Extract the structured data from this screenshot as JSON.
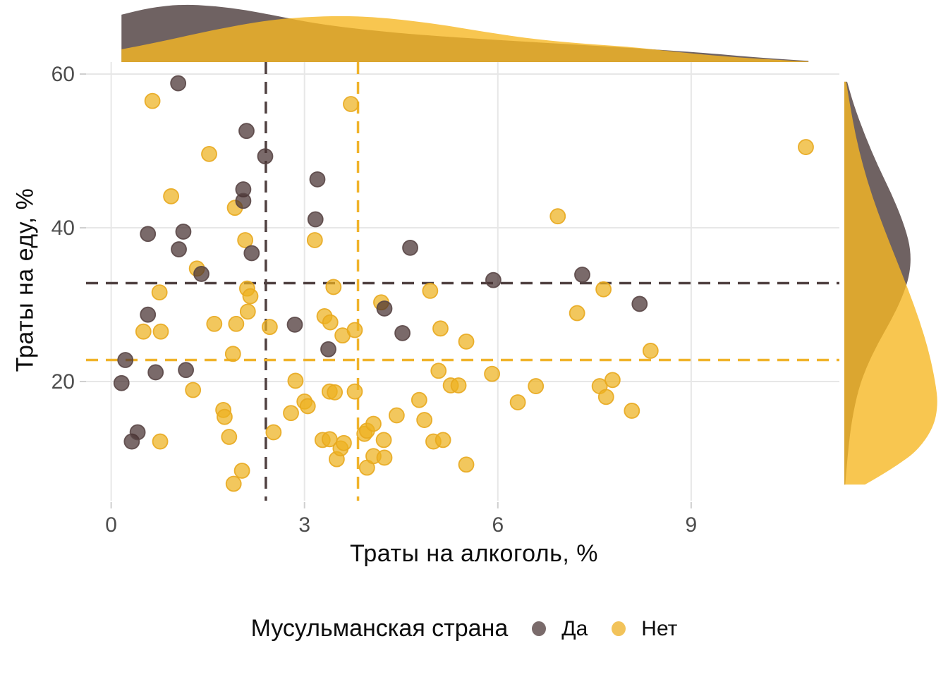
{
  "figure": {
    "x_axis": {
      "title": "Траты на алкоголь, %"
    },
    "y_axis": {
      "title": "Траты на еду, %"
    },
    "legend": {
      "title": "Мусульманская страна",
      "yes_label": "Да",
      "no_label": "Нет"
    }
  },
  "chart_data": {
    "type": "scatter",
    "title": "",
    "xlabel": "Траты на алкоголь, %",
    "ylabel": "Траты на еду, %",
    "xlim": [
      -0.39,
      11.3
    ],
    "ylim": [
      4.5,
      61.56
    ],
    "x_ticks": [
      0,
      3,
      6,
      9
    ],
    "y_ticks": [
      20,
      40,
      60
    ],
    "grid": true,
    "legend_position": "bottom",
    "legend_title": "Мусульманская страна",
    "series": [
      {
        "name": "Да",
        "points": [
          [
            0.16,
            19.8
          ],
          [
            0.22,
            22.8
          ],
          [
            0.32,
            12.2
          ],
          [
            0.41,
            13.4
          ],
          [
            0.57,
            39.2
          ],
          [
            0.57,
            28.7
          ],
          [
            0.69,
            21.2
          ],
          [
            1.04,
            58.8
          ],
          [
            1.05,
            37.2
          ],
          [
            1.12,
            39.5
          ],
          [
            1.16,
            21.5
          ],
          [
            1.4,
            34.0
          ],
          [
            2.05,
            45.0
          ],
          [
            2.05,
            43.5
          ],
          [
            2.1,
            52.6
          ],
          [
            2.18,
            36.7
          ],
          [
            2.39,
            49.3
          ],
          [
            2.85,
            27.4
          ],
          [
            3.17,
            41.1
          ],
          [
            3.2,
            46.3
          ],
          [
            3.37,
            24.2
          ],
          [
            4.24,
            29.5
          ],
          [
            4.52,
            26.3
          ],
          [
            4.64,
            37.4
          ],
          [
            5.93,
            33.2
          ],
          [
            7.31,
            33.9
          ],
          [
            8.2,
            30.1
          ]
        ]
      },
      {
        "name": "Нет",
        "points": [
          [
            0.5,
            26.5
          ],
          [
            0.64,
            56.5
          ],
          [
            0.75,
            31.6
          ],
          [
            0.76,
            12.2
          ],
          [
            0.77,
            26.5
          ],
          [
            0.93,
            44.1
          ],
          [
            1.27,
            18.9
          ],
          [
            1.33,
            34.7
          ],
          [
            1.52,
            49.6
          ],
          [
            1.6,
            27.5
          ],
          [
            1.74,
            16.3
          ],
          [
            1.76,
            15.4
          ],
          [
            1.83,
            12.8
          ],
          [
            1.9,
            6.7
          ],
          [
            1.92,
            42.6
          ],
          [
            1.89,
            23.6
          ],
          [
            1.94,
            27.5
          ],
          [
            2.03,
            8.4
          ],
          [
            2.08,
            38.4
          ],
          [
            2.11,
            32.1
          ],
          [
            2.16,
            31.1
          ],
          [
            2.12,
            29.1
          ],
          [
            2.46,
            27.1
          ],
          [
            2.52,
            13.4
          ],
          [
            2.79,
            15.9
          ],
          [
            2.86,
            20.1
          ],
          [
            3.0,
            17.4
          ],
          [
            3.05,
            16.8
          ],
          [
            3.16,
            38.4
          ],
          [
            3.28,
            12.4
          ],
          [
            3.31,
            28.5
          ],
          [
            3.39,
            18.7
          ],
          [
            3.39,
            12.5
          ],
          [
            3.4,
            27.7
          ],
          [
            3.45,
            32.3
          ],
          [
            3.47,
            18.6
          ],
          [
            3.5,
            9.9
          ],
          [
            3.56,
            11.3
          ],
          [
            3.59,
            26.0
          ],
          [
            3.61,
            12.0
          ],
          [
            3.72,
            56.1
          ],
          [
            3.78,
            26.7
          ],
          [
            3.78,
            18.7
          ],
          [
            3.93,
            13.2
          ],
          [
            3.97,
            13.6
          ],
          [
            3.97,
            8.8
          ],
          [
            4.07,
            14.5
          ],
          [
            4.07,
            10.3
          ],
          [
            4.19,
            30.3
          ],
          [
            4.23,
            12.4
          ],
          [
            4.24,
            10.1
          ],
          [
            4.43,
            15.6
          ],
          [
            4.78,
            17.6
          ],
          [
            4.86,
            15.0
          ],
          [
            4.95,
            31.8
          ],
          [
            5.0,
            12.2
          ],
          [
            5.08,
            21.4
          ],
          [
            5.11,
            26.9
          ],
          [
            5.15,
            12.4
          ],
          [
            5.27,
            19.5
          ],
          [
            5.39,
            19.5
          ],
          [
            5.51,
            25.2
          ],
          [
            5.51,
            9.2
          ],
          [
            5.91,
            21.0
          ],
          [
            6.31,
            17.3
          ],
          [
            6.59,
            19.4
          ],
          [
            6.93,
            41.5
          ],
          [
            7.23,
            28.9
          ],
          [
            7.58,
            19.4
          ],
          [
            7.64,
            32.0
          ],
          [
            7.68,
            18.0
          ],
          [
            7.78,
            20.2
          ],
          [
            8.08,
            16.2
          ],
          [
            8.37,
            24.0
          ],
          [
            10.78,
            50.5
          ]
        ]
      }
    ],
    "mean_lines": [
      {
        "group": "Да",
        "x": 2.4,
        "y": 32.8
      },
      {
        "group": "Нет",
        "x": 3.83,
        "y": 22.8
      }
    ],
    "marginal_density": {
      "top": {
        "clip_x": [
          0.16,
          10.82
        ],
        "yes": [
          [
            0.16,
            0.82
          ],
          [
            0.6,
            0.94
          ],
          [
            1.1,
            1.0
          ],
          [
            1.6,
            0.97
          ],
          [
            2.1,
            0.9
          ],
          [
            2.6,
            0.79
          ],
          [
            3.2,
            0.66
          ],
          [
            4.0,
            0.55
          ],
          [
            4.9,
            0.46
          ],
          [
            6.3,
            0.36
          ],
          [
            7.7,
            0.27
          ],
          [
            9.1,
            0.17
          ],
          [
            10.0,
            0.08
          ],
          [
            10.82,
            0.02
          ]
        ],
        "no": [
          [
            0.16,
            0.22
          ],
          [
            0.8,
            0.36
          ],
          [
            1.6,
            0.56
          ],
          [
            2.4,
            0.72
          ],
          [
            3.0,
            0.78
          ],
          [
            3.6,
            0.8
          ],
          [
            4.2,
            0.77
          ],
          [
            5.0,
            0.67
          ],
          [
            5.8,
            0.52
          ],
          [
            6.6,
            0.39
          ],
          [
            7.4,
            0.31
          ],
          [
            8.1,
            0.26
          ],
          [
            8.8,
            0.17
          ],
          [
            9.6,
            0.09
          ],
          [
            10.3,
            0.04
          ],
          [
            10.82,
            0.01
          ]
        ]
      },
      "right": {
        "clip_y": [
          59.0,
          6.6
        ],
        "yes": [
          [
            59,
            0.03
          ],
          [
            56,
            0.1
          ],
          [
            52,
            0.22
          ],
          [
            48,
            0.36
          ],
          [
            44,
            0.52
          ],
          [
            40,
            0.65
          ],
          [
            37,
            0.71
          ],
          [
            34,
            0.7
          ],
          [
            31,
            0.62
          ],
          [
            28,
            0.5
          ],
          [
            25,
            0.36
          ],
          [
            22,
            0.24
          ],
          [
            19,
            0.15
          ],
          [
            15,
            0.08
          ],
          [
            11,
            0.04
          ],
          [
            6.6,
            0.01
          ]
        ],
        "no": [
          [
            59,
            0.02
          ],
          [
            56,
            0.06
          ],
          [
            52,
            0.12
          ],
          [
            48,
            0.2
          ],
          [
            44,
            0.3
          ],
          [
            40,
            0.42
          ],
          [
            36,
            0.55
          ],
          [
            32,
            0.68
          ],
          [
            28,
            0.8
          ],
          [
            24,
            0.9
          ],
          [
            20,
            0.97
          ],
          [
            17,
            1.0
          ],
          [
            14,
            0.95
          ],
          [
            11,
            0.78
          ],
          [
            9,
            0.55
          ],
          [
            7.5,
            0.35
          ],
          [
            6.6,
            0.22
          ]
        ]
      }
    },
    "colors": {
      "yes_fill": "#463131",
      "yes_stroke": "#5a4747",
      "yes_density": "#4b3b3b",
      "yes_line": "#4f4040",
      "no_fill": "#edb11f",
      "no_stroke": "#e8a81e",
      "no_density": "#f6b824",
      "no_line": "#f0b32b",
      "point_opacity": 0.72,
      "density_opacity": 0.8,
      "legend_dot_yes": "#7a6b6b",
      "legend_dot_no": "#f2c35a",
      "grid": "#e7e7e7",
      "tick": "#cfcfcf",
      "tick_label": "#4d4d4d"
    }
  }
}
